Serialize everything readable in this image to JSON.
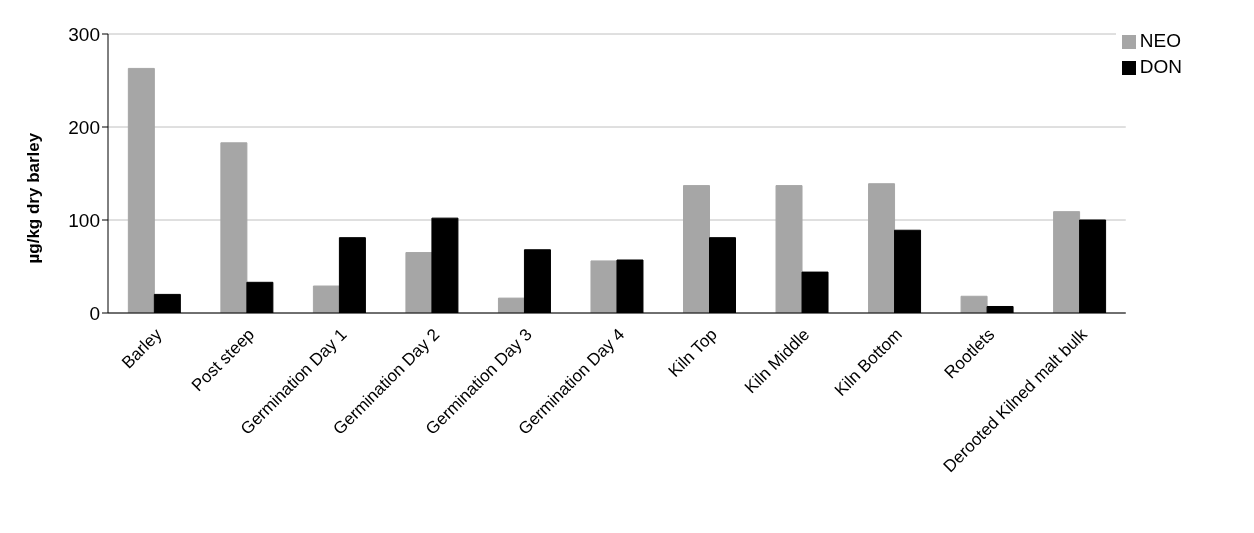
{
  "chart_data": {
    "type": "bar",
    "ylabel": "µg/kg dry barley",
    "categories": [
      "Barley",
      "Post steep",
      "Germination Day 1",
      "Germination Day 2",
      "Germination Day 3",
      "Germination Day 4",
      "Kiln Top",
      "Kiln Middle",
      "Kiln Bottom",
      "Rootlets",
      "Derooted Kilned malt bulk"
    ],
    "series": [
      {
        "name": "NEO",
        "color": "#a6a6a6",
        "values": [
          263,
          183,
          29,
          65,
          16,
          56,
          137,
          137,
          139,
          18,
          109
        ]
      },
      {
        "name": "DON",
        "color": "#000000",
        "values": [
          20,
          33,
          81,
          102,
          68,
          57,
          81,
          44,
          89,
          7,
          100
        ]
      }
    ],
    "ylim": [
      0,
      300
    ],
    "yticks": [
      0,
      100,
      200,
      300
    ],
    "grid": "y",
    "legend": "top right"
  }
}
